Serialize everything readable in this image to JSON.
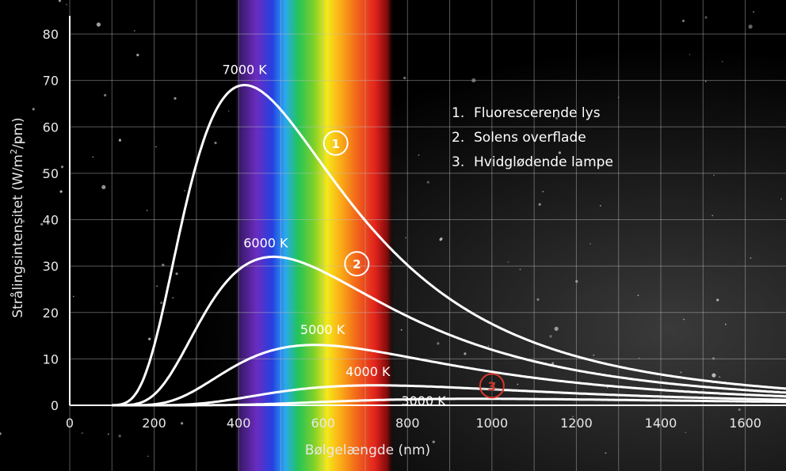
{
  "chart_data": {
    "type": "line",
    "xlabel": "Bølgelængde (nm)",
    "ylabel_prefix": "Strålingsintensitet (W/m",
    "ylabel_sup": "2",
    "ylabel_suffix": "/pm)",
    "xlim": [
      0,
      1700
    ],
    "ylim": [
      0,
      85
    ],
    "x_ticks": [
      0,
      200,
      400,
      600,
      800,
      1000,
      1200,
      1400,
      1600
    ],
    "y_ticks": [
      0,
      10,
      20,
      30,
      40,
      50,
      60,
      70,
      80
    ],
    "grid": true,
    "background": "starfield",
    "spectrum_band_nm": [
      400,
      750
    ],
    "series": [
      {
        "name": "7000 K",
        "temperature": 7000,
        "peak": [
          414,
          69
        ],
        "color": "#ffffff"
      },
      {
        "name": "6000 K",
        "temperature": 6000,
        "peak": [
          483,
          32
        ],
        "color": "#ffffff"
      },
      {
        "name": "5000 K",
        "temperature": 5000,
        "peak": [
          580,
          13
        ],
        "color": "#ffffff"
      },
      {
        "name": "4000 K",
        "temperature": 4000,
        "peak": [
          725,
          4.3
        ],
        "color": "#ffffff"
      },
      {
        "name": "3000 K",
        "temperature": 3000,
        "peak": [
          966,
          1.4
        ],
        "color": "#ffffff"
      }
    ],
    "markers": [
      {
        "label": "1",
        "x": 630,
        "y": 56.5,
        "color": "#ffffff"
      },
      {
        "label": "2",
        "x": 680,
        "y": 30.5,
        "color": "#ffffff"
      },
      {
        "label": "3",
        "x": 1000,
        "y": 4.2,
        "color": "#d9372b"
      }
    ],
    "legend": {
      "position": "top-right",
      "items": [
        {
          "num": "1.",
          "text": "Fluorescerende lys"
        },
        {
          "num": "2.",
          "text": "Solens overflade"
        },
        {
          "num": "3.",
          "text": "Hvidglødende lampe"
        }
      ]
    }
  }
}
